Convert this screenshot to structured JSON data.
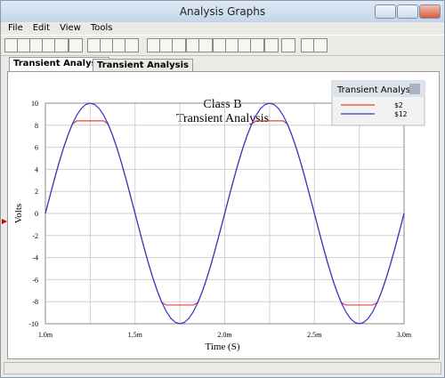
{
  "window": {
    "title": "Analysis Graphs",
    "menu": [
      "File",
      "Edit",
      "View",
      "Tools"
    ],
    "tabs": [
      "Transient Analysis",
      "Transient Analysis"
    ]
  },
  "chart_data": {
    "type": "line",
    "title": "Class B",
    "subtitle": "Transient Analysis",
    "x_label": "Time (S)",
    "y_label": "Volts",
    "legend_title": "Transient Analysis",
    "legend_position": "upper right",
    "grid": true,
    "x": [
      0.001,
      0.001025,
      0.00105,
      0.001075,
      0.0011,
      0.001125,
      0.00115,
      0.001175,
      0.0012,
      0.001225,
      0.00125,
      0.001275,
      0.0013,
      0.001325,
      0.00135,
      0.001375,
      0.0014,
      0.001425,
      0.00145,
      0.001475,
      0.0015,
      0.001525,
      0.00155,
      0.001575,
      0.0016,
      0.001625,
      0.00165,
      0.001675,
      0.0017,
      0.001725,
      0.00175,
      0.001775,
      0.0018,
      0.001825,
      0.00185,
      0.001875,
      0.0019,
      0.001925,
      0.00195,
      0.001975,
      0.002,
      0.002025,
      0.00205,
      0.002075,
      0.0021,
      0.002125,
      0.00215,
      0.002175,
      0.0022,
      0.002225,
      0.00225,
      0.002275,
      0.0023,
      0.002325,
      0.00235,
      0.002375,
      0.0024,
      0.002425,
      0.00245,
      0.002475,
      0.0025,
      0.002525,
      0.00255,
      0.002575,
      0.0026,
      0.002625,
      0.00265,
      0.002675,
      0.0027,
      0.002725,
      0.00275,
      0.002775,
      0.0028,
      0.002825,
      0.00285,
      0.002875,
      0.0029,
      0.002925,
      0.00295,
      0.002975,
      0.003
    ],
    "series": [
      {
        "name": "$2",
        "color": "#e8403c",
        "values": [
          0,
          1.56,
          3.09,
          4.54,
          5.88,
          7.07,
          8.09,
          8.4,
          8.4,
          8.4,
          8.4,
          8.4,
          8.4,
          8.4,
          8.09,
          7.07,
          5.88,
          4.54,
          3.09,
          1.56,
          0,
          -1.56,
          -3.09,
          -4.54,
          -5.88,
          -7.07,
          -8.09,
          -8.3,
          -8.3,
          -8.3,
          -8.3,
          -8.3,
          -8.3,
          -8.3,
          -8.09,
          -7.07,
          -5.88,
          -4.54,
          -3.09,
          -1.56,
          0,
          1.56,
          3.09,
          4.54,
          5.88,
          7.07,
          8.09,
          8.4,
          8.4,
          8.4,
          8.4,
          8.4,
          8.4,
          8.4,
          8.09,
          7.07,
          5.88,
          4.54,
          3.09,
          1.56,
          0,
          -1.56,
          -3.09,
          -4.54,
          -5.88,
          -7.07,
          -8.09,
          -8.3,
          -8.3,
          -8.3,
          -8.3,
          -8.3,
          -8.3,
          -8.3,
          -8.09,
          -7.07,
          -5.88,
          -4.54,
          -3.09,
          -1.56,
          0
        ]
      },
      {
        "name": "$12",
        "color": "#3434c8",
        "values": [
          0,
          1.56,
          3.09,
          4.54,
          5.88,
          7.07,
          8.09,
          8.91,
          9.51,
          9.88,
          10,
          9.88,
          9.51,
          8.91,
          8.09,
          7.07,
          5.88,
          4.54,
          3.09,
          1.56,
          0,
          -1.56,
          -3.09,
          -4.54,
          -5.88,
          -7.07,
          -8.09,
          -8.91,
          -9.51,
          -9.88,
          -10,
          -9.88,
          -9.51,
          -8.91,
          -8.09,
          -7.07,
          -5.88,
          -4.54,
          -3.09,
          -1.56,
          0,
          1.56,
          3.09,
          4.54,
          5.88,
          7.07,
          8.09,
          8.91,
          9.51,
          9.88,
          10,
          9.88,
          9.51,
          8.91,
          8.09,
          7.07,
          5.88,
          4.54,
          3.09,
          1.56,
          0,
          -1.56,
          -3.09,
          -4.54,
          -5.88,
          -7.07,
          -8.09,
          -8.91,
          -9.51,
          -9.88,
          -10,
          -9.88,
          -9.51,
          -8.91,
          -8.09,
          -7.07,
          -5.88,
          -4.54,
          -3.09,
          -1.56,
          0
        ]
      }
    ],
    "xlim": [
      0.001,
      0.003
    ],
    "xticks": [
      {
        "value": 0.001,
        "label": "1.0m"
      },
      {
        "value": 0.0015,
        "label": "1.5m"
      },
      {
        "value": 0.002,
        "label": "2.0m"
      },
      {
        "value": 0.0025,
        "label": "2.5m"
      },
      {
        "value": 0.003,
        "label": "3.0m"
      }
    ],
    "xgrid": [
      0.00125,
      0.00175,
      0.00225,
      0.00275
    ],
    "ylim": [
      -10,
      10
    ],
    "yticks": [
      -10,
      -8,
      -6,
      -4,
      -2,
      0,
      2,
      4,
      6,
      8,
      10
    ]
  }
}
